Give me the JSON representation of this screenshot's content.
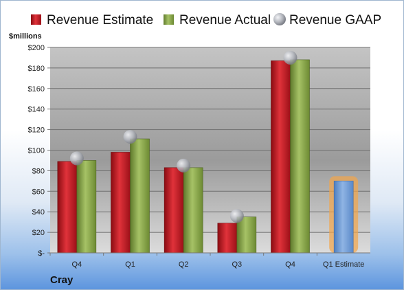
{
  "company": "Cray",
  "chart_data": {
    "type": "bar",
    "title": "",
    "xlabel": "",
    "ylabel": "$millions",
    "ylim": [
      0,
      200
    ],
    "ytick_step": 20,
    "ytick_labels": [
      "$-",
      "$20",
      "$40",
      "$60",
      "$80",
      "$100",
      "$120",
      "$140",
      "$160",
      "$180",
      "$200"
    ],
    "categories": [
      "Q4",
      "Q1",
      "Q2",
      "Q3",
      "Q4",
      "Q1 Estimate"
    ],
    "legend_position": "top",
    "grid": true,
    "series": [
      {
        "name": "Revenue Estimate",
        "kind": "bar",
        "color": "#c0141c",
        "values": [
          89,
          98,
          83,
          29,
          187,
          70
        ]
      },
      {
        "name": "Revenue Actual",
        "kind": "bar",
        "color": "#8aa84a",
        "values": [
          90,
          111,
          83,
          35,
          188,
          null
        ]
      },
      {
        "name": "Revenue GAAP",
        "kind": "marker",
        "color": "#a9acb4",
        "values": [
          92,
          113,
          85,
          36,
          190,
          null
        ]
      }
    ],
    "estimate_bar": {
      "category_index": 5,
      "color": "#6f9bd3",
      "glow": "#f2a54a"
    }
  }
}
